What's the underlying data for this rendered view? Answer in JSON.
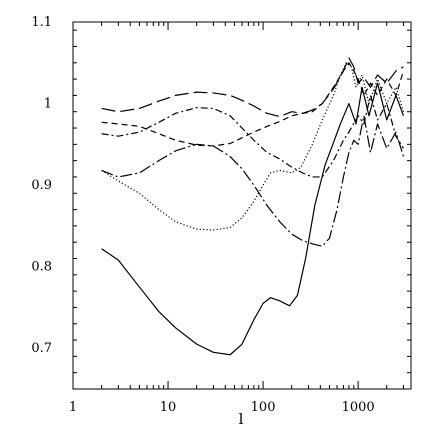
{
  "chart_data": {
    "type": "line",
    "title": "",
    "xlabel": "l",
    "ylabel": "",
    "xscale": "log",
    "xlim": [
      1,
      3600
    ],
    "ylim": [
      0.65,
      1.1
    ],
    "grid": false,
    "legend": "none",
    "x_tick_labels": [
      "1",
      "10",
      "100",
      "1000"
    ],
    "y_tick_labels": [
      "0.7",
      "0.8",
      "0.9",
      "1",
      "1.1"
    ],
    "series": [
      {
        "style": "solid",
        "points": [
          [
            2,
            0.822
          ],
          [
            3,
            0.808
          ],
          [
            5,
            0.775
          ],
          [
            8,
            0.745
          ],
          [
            12,
            0.725
          ],
          [
            20,
            0.705
          ],
          [
            30,
            0.695
          ],
          [
            45,
            0.692
          ],
          [
            60,
            0.705
          ],
          [
            80,
            0.735
          ],
          [
            100,
            0.755
          ],
          [
            120,
            0.762
          ],
          [
            150,
            0.758
          ],
          [
            190,
            0.752
          ],
          [
            230,
            0.765
          ],
          [
            280,
            0.81
          ],
          [
            350,
            0.875
          ],
          [
            450,
            0.925
          ],
          [
            550,
            0.952
          ],
          [
            650,
            0.975
          ],
          [
            800,
            1.0
          ],
          [
            950,
            0.975
          ],
          [
            1100,
            1.02
          ],
          [
            1300,
            0.985
          ],
          [
            1600,
            1.025
          ],
          [
            2000,
            0.98
          ],
          [
            2500,
            1.01
          ],
          [
            3000,
            0.985
          ]
        ]
      },
      {
        "style": "dashed-long",
        "points": [
          [
            2,
            0.994
          ],
          [
            3,
            0.99
          ],
          [
            5,
            0.994
          ],
          [
            8,
            1.003
          ],
          [
            12,
            1.01
          ],
          [
            20,
            1.014
          ],
          [
            30,
            1.013
          ],
          [
            45,
            1.01
          ],
          [
            60,
            1.004
          ],
          [
            80,
            0.997
          ],
          [
            110,
            0.988
          ],
          [
            150,
            0.984
          ],
          [
            200,
            0.99
          ],
          [
            260,
            0.988
          ],
          [
            330,
            0.992
          ],
          [
            420,
            1.0
          ],
          [
            550,
            1.018
          ],
          [
            700,
            1.04
          ],
          [
            800,
            1.056
          ],
          [
            900,
            1.045
          ],
          [
            1000,
            1.025
          ],
          [
            1150,
            1.032
          ],
          [
            1350,
            1.02
          ],
          [
            1600,
            1.035
          ],
          [
            2000,
            1.025
          ],
          [
            2500,
            1.04
          ],
          [
            3000,
            1.045
          ]
        ]
      },
      {
        "style": "dashed-short",
        "points": [
          [
            2,
            0.977
          ],
          [
            3,
            0.975
          ],
          [
            5,
            0.972
          ],
          [
            8,
            0.963
          ],
          [
            12,
            0.955
          ],
          [
            20,
            0.949
          ],
          [
            30,
            0.948
          ],
          [
            45,
            0.951
          ],
          [
            60,
            0.958
          ],
          [
            80,
            0.965
          ],
          [
            110,
            0.972
          ],
          [
            150,
            0.978
          ],
          [
            200,
            0.985
          ],
          [
            260,
            0.988
          ],
          [
            330,
            0.99
          ],
          [
            420,
            1.0
          ],
          [
            550,
            1.02
          ],
          [
            700,
            1.04
          ],
          [
            800,
            1.05
          ],
          [
            900,
            1.04
          ],
          [
            1000,
            1.03
          ],
          [
            1150,
            1.01
          ],
          [
            1350,
            1.025
          ],
          [
            1600,
            1.01
          ],
          [
            2000,
            1.03
          ],
          [
            2500,
            1.01
          ],
          [
            3000,
            1.04
          ]
        ]
      },
      {
        "style": "dash-dot",
        "points": [
          [
            2,
            0.963
          ],
          [
            3,
            0.96
          ],
          [
            5,
            0.965
          ],
          [
            8,
            0.977
          ],
          [
            12,
            0.988
          ],
          [
            20,
            0.995
          ],
          [
            30,
            0.994
          ],
          [
            45,
            0.985
          ],
          [
            60,
            0.97
          ],
          [
            80,
            0.955
          ],
          [
            110,
            0.94
          ],
          [
            150,
            0.932
          ],
          [
            200,
            0.922
          ],
          [
            260,
            0.915
          ],
          [
            330,
            0.91
          ],
          [
            420,
            0.91
          ],
          [
            550,
            0.93
          ],
          [
            700,
            0.955
          ],
          [
            800,
            0.965
          ],
          [
            1000,
            0.985
          ],
          [
            1150,
            0.975
          ],
          [
            1350,
            1.01
          ],
          [
            1600,
            0.98
          ],
          [
            2000,
            1.0
          ],
          [
            2500,
            0.96
          ],
          [
            3000,
            0.945
          ]
        ]
      },
      {
        "style": "long-dash-dot",
        "points": [
          [
            2,
            0.918
          ],
          [
            3,
            0.91
          ],
          [
            5,
            0.915
          ],
          [
            8,
            0.93
          ],
          [
            12,
            0.942
          ],
          [
            20,
            0.95
          ],
          [
            30,
            0.948
          ],
          [
            45,
            0.935
          ],
          [
            60,
            0.92
          ],
          [
            80,
            0.9
          ],
          [
            110,
            0.875
          ],
          [
            150,
            0.855
          ],
          [
            200,
            0.84
          ],
          [
            260,
            0.832
          ],
          [
            330,
            0.828
          ],
          [
            420,
            0.825
          ],
          [
            500,
            0.835
          ],
          [
            600,
            0.87
          ],
          [
            700,
            0.91
          ],
          [
            800,
            0.94
          ],
          [
            900,
            0.955
          ],
          [
            1000,
            0.95
          ],
          [
            1150,
            0.985
          ],
          [
            1350,
            0.94
          ],
          [
            1600,
            0.975
          ],
          [
            2000,
            0.945
          ],
          [
            2500,
            0.965
          ],
          [
            3000,
            0.935
          ]
        ]
      },
      {
        "style": "dotted",
        "points": [
          [
            2,
            0.918
          ],
          [
            3,
            0.905
          ],
          [
            5,
            0.89
          ],
          [
            8,
            0.87
          ],
          [
            12,
            0.855
          ],
          [
            20,
            0.846
          ],
          [
            30,
            0.845
          ],
          [
            45,
            0.848
          ],
          [
            60,
            0.86
          ],
          [
            80,
            0.88
          ],
          [
            100,
            0.9
          ],
          [
            120,
            0.915
          ],
          [
            150,
            0.918
          ],
          [
            200,
            0.915
          ],
          [
            250,
            0.922
          ],
          [
            330,
            0.95
          ],
          [
            420,
            0.98
          ],
          [
            550,
            1.01
          ],
          [
            650,
            1.035
          ],
          [
            750,
            1.05
          ],
          [
            850,
            1.045
          ],
          [
            950,
            1.02
          ],
          [
            1100,
            1.035
          ],
          [
            1300,
            1.0
          ],
          [
            1600,
            1.03
          ],
          [
            2000,
            1.0
          ],
          [
            2500,
            1.02
          ],
          [
            3000,
            0.99
          ]
        ]
      }
    ]
  }
}
